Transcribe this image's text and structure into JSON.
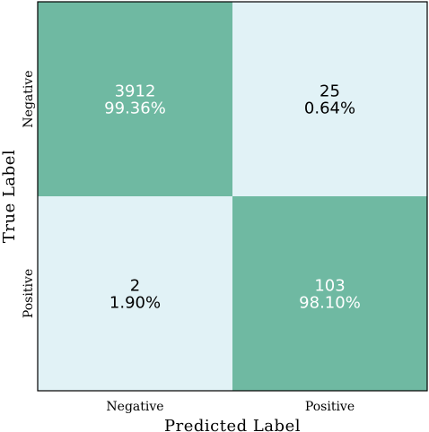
{
  "chart_data": {
    "type": "heatmap",
    "xlabel": "Predicted Label",
    "ylabel": "True Label",
    "x_categories": [
      "Negative",
      "Positive"
    ],
    "y_categories": [
      "Negative",
      "Positive"
    ],
    "cells": [
      [
        {
          "count": "3912",
          "percent": "99.36%"
        },
        {
          "count": "25",
          "percent": "0.64%"
        }
      ],
      [
        {
          "count": "2",
          "percent": "1.90%"
        },
        {
          "count": "103",
          "percent": "98.10%"
        }
      ]
    ],
    "values": [
      [
        99.36,
        0.64
      ],
      [
        1.9,
        98.1
      ]
    ],
    "colors": {
      "high": "#6fb9a2",
      "low": "#e1f2f6",
      "text_on_high": "#ffffff",
      "text_on_low": "#000000"
    }
  }
}
